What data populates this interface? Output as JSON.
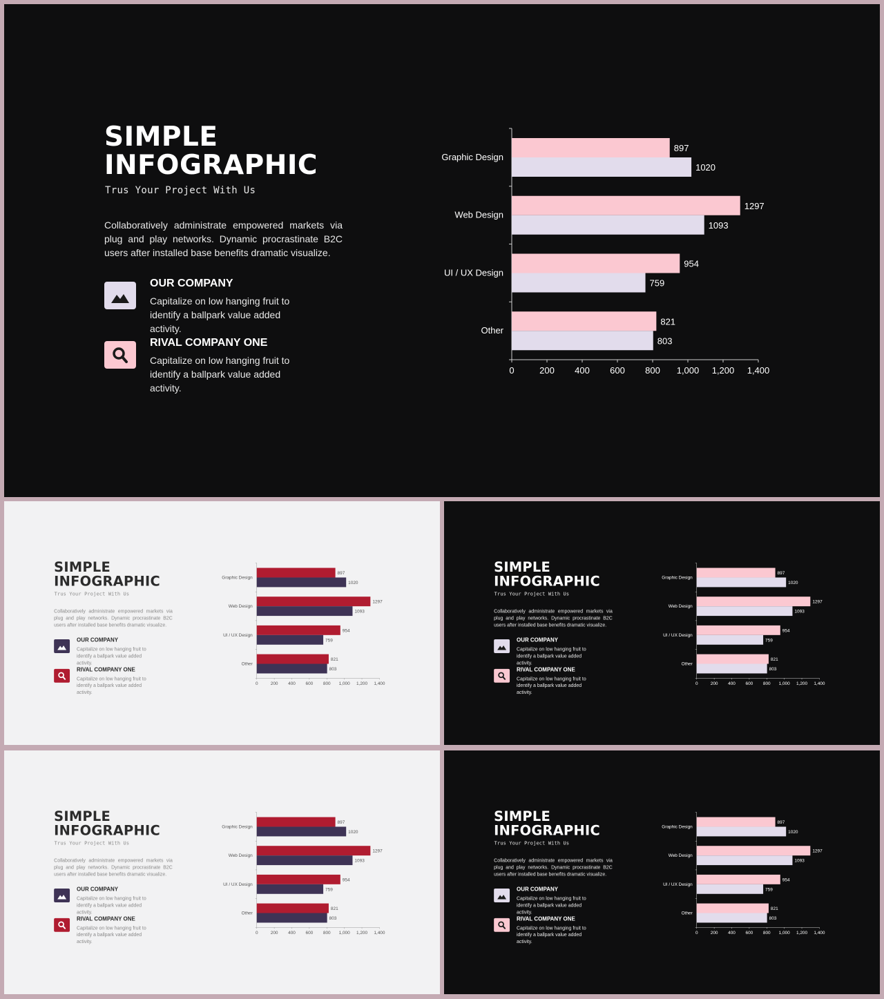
{
  "slide": {
    "title_line1": "SIMPLE",
    "title_line2": "INFOGRAPHIC",
    "subtitle": "Trus Your Project With Us",
    "description": "Collaboratively administrate empowered markets via plug and play networks. Dynamic procrastinate B2C users after installed base benefits dramatic visualize.",
    "features": [
      {
        "title": "OUR COMPANY",
        "text": "Capitalize on low hanging fruit to identify a ballpark value added activity.",
        "icon": "image-icon"
      },
      {
        "title": "RIVAL COMPANY ONE",
        "text": "Capitalize on low hanging fruit to identify a ballpark value added activity.",
        "icon": "search-icon"
      }
    ]
  },
  "themes": {
    "dark": {
      "series1": "#fbc8d1",
      "series2": "#e2dcec",
      "icon1": "#e2dcec",
      "icon2": "#fbc8d1",
      "glyph": "#1a1a1a",
      "text": "#ffffff",
      "axis": "#cfcfcf"
    },
    "light": {
      "series1": "#b01c30",
      "series2": "#3e3355",
      "icon1": "#3e3355",
      "icon2": "#b01c30",
      "glyph": "#ffffff",
      "text": "#555555",
      "axis": "#9a9a9a"
    }
  },
  "chart_data": {
    "type": "bar",
    "orientation": "horizontal",
    "categories": [
      "Graphic Design",
      "Web Design",
      "UI / UX Design",
      "Other"
    ],
    "series": [
      {
        "values": [
          897,
          1297,
          954,
          821
        ]
      },
      {
        "values": [
          1020,
          1093,
          759,
          803
        ]
      }
    ],
    "xlim": [
      0,
      1400
    ],
    "xticks": [
      "0",
      "200",
      "400",
      "600",
      "800",
      "1,000",
      "1,200",
      "1,400"
    ],
    "grid": false,
    "data_labels": true
  }
}
